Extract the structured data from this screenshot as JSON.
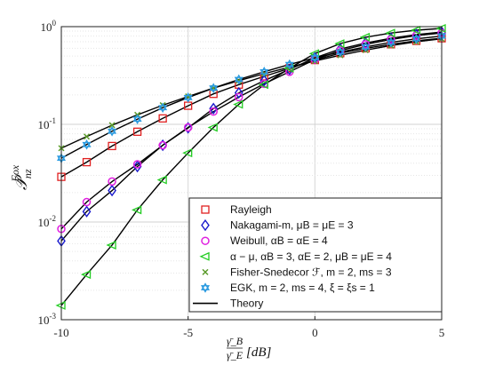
{
  "chart_data": {
    "type": "line",
    "yscale": "log",
    "xlim": [
      -10,
      5
    ],
    "ylim": [
      0.001,
      1
    ],
    "grid": true,
    "legend_position": "lower-right",
    "ylabel": "𝒫",
    "ylabel_sub": "nz",
    "ylabel_sup": "Fox",
    "xlabel_num": "γ̄_B",
    "xlabel_den": "γ̄_E",
    "xlabel_unit": "[dB]",
    "x_ticks": [
      "-10",
      "-5",
      "0",
      "5"
    ],
    "y_ticks": [
      {
        "base": "10",
        "exp": "-3"
      },
      {
        "base": "10",
        "exp": "-2"
      },
      {
        "base": "10",
        "exp": "-1"
      },
      {
        "base": "10",
        "exp": "0"
      }
    ],
    "x": [
      -10,
      -9,
      -8,
      -7,
      -6,
      -5,
      -4,
      -3,
      -2,
      -1,
      0,
      1,
      2,
      3,
      4,
      5
    ],
    "series": [
      {
        "name": "Rayleigh",
        "marker": "square",
        "color": "#e02020",
        "values": [
          0.029,
          0.041,
          0.06,
          0.084,
          0.115,
          0.155,
          0.205,
          0.255,
          0.31,
          0.375,
          0.455,
          0.535,
          0.6,
          0.66,
          0.715,
          0.76
        ]
      },
      {
        "name": "Nakagami-m, μ_B = μ_E = 3",
        "marker": "diamond",
        "color": "#1a1acc",
        "values": [
          0.0064,
          0.0128,
          0.021,
          0.037,
          0.061,
          0.092,
          0.145,
          0.21,
          0.28,
          0.365,
          0.48,
          0.59,
          0.68,
          0.76,
          0.83,
          0.88
        ]
      },
      {
        "name": "Weibull, α_B = α_E = 4",
        "marker": "circle",
        "color": "#e020e0",
        "values": [
          0.0085,
          0.016,
          0.026,
          0.039,
          0.061,
          0.093,
          0.135,
          0.19,
          0.26,
          0.345,
          0.46,
          0.57,
          0.66,
          0.74,
          0.81,
          0.86
        ]
      },
      {
        "name": "α − μ, α_B = 3, α_E = 2, μ_B = μ_E = 4",
        "marker": "triangle-left",
        "color": "#22cc22",
        "values": [
          0.0014,
          0.0029,
          0.0058,
          0.0133,
          0.027,
          0.051,
          0.093,
          0.16,
          0.255,
          0.375,
          0.53,
          0.67,
          0.78,
          0.86,
          0.92,
          0.96
        ]
      },
      {
        "name": "Fisher-Snedecor ℱ, m = 2, m_s = 3",
        "marker": "x",
        "color": "#5a9a2a",
        "values": [
          0.057,
          0.075,
          0.098,
          0.125,
          0.157,
          0.193,
          0.235,
          0.28,
          0.33,
          0.385,
          0.445,
          0.51,
          0.575,
          0.64,
          0.7,
          0.75
        ]
      },
      {
        "name": "EGK, m = 2, m_s = 4, ξ = ξ_s = 1",
        "marker": "hexagram",
        "color": "#2a9ae0",
        "values": [
          0.045,
          0.062,
          0.085,
          0.113,
          0.148,
          0.188,
          0.235,
          0.288,
          0.345,
          0.41,
          0.48,
          0.55,
          0.62,
          0.69,
          0.75,
          0.8
        ]
      }
    ],
    "legend": [
      {
        "label": "Rayleigh",
        "marker": "square",
        "color": "#e02020"
      },
      {
        "label": "Nakagami-m, μB = μE = 3",
        "marker": "diamond",
        "color": "#1a1acc"
      },
      {
        "label": "Weibull, αB = αE = 4",
        "marker": "circle",
        "color": "#e020e0"
      },
      {
        "label": "α − μ, αB = 3, αE = 2, μB = μE = 4",
        "marker": "triangle-left",
        "color": "#22cc22"
      },
      {
        "label": "Fisher-Snedecor ℱ, m = 2, ms = 3",
        "marker": "x",
        "color": "#5a9a2a"
      },
      {
        "label": "EGK, m = 2, ms = 4, ξ = ξs = 1",
        "marker": "hexagram",
        "color": "#2a9ae0"
      },
      {
        "label": "Theory",
        "marker": "line",
        "color": "#000000"
      }
    ]
  }
}
